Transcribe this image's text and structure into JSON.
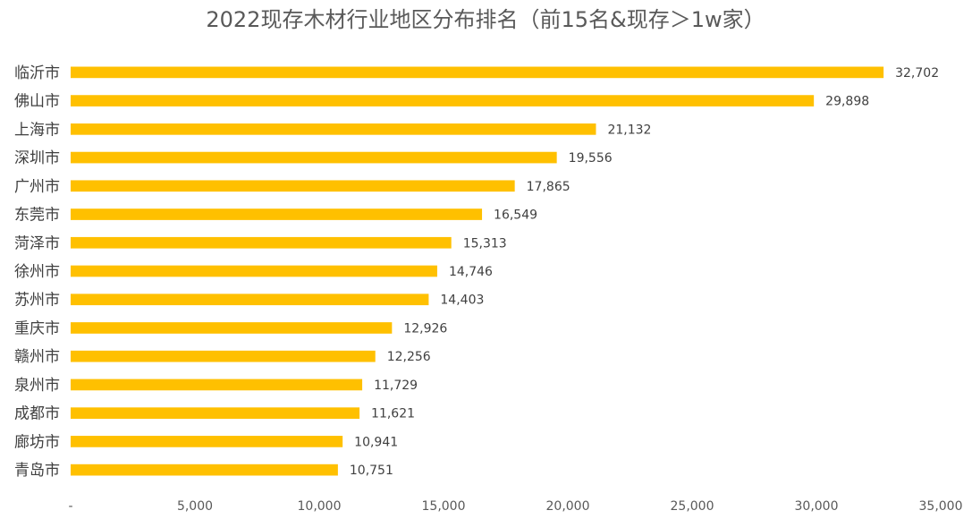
{
  "chart_data": {
    "type": "bar",
    "orientation": "horizontal",
    "title": "2022现存木材行业地区分布排名（前15名&现存＞1w家）",
    "xlabel": "",
    "ylabel": "",
    "categories": [
      "临沂市",
      "佛山市",
      "上海市",
      "深圳市",
      "广州市",
      "东莞市",
      "菏泽市",
      "徐州市",
      "苏州市",
      "重庆市",
      "赣州市",
      "泉州市",
      "成都市",
      "廊坊市",
      "青岛市"
    ],
    "values": [
      32702,
      29898,
      21132,
      19556,
      17865,
      16549,
      15313,
      14746,
      14403,
      12926,
      12256,
      11729,
      11621,
      10941,
      10751
    ],
    "data_labels": [
      "32,702",
      "29,898",
      "21,132",
      "19,556",
      "17,865",
      "16,549",
      "15,313",
      "14,746",
      "14,403",
      "12,926",
      "12,256",
      "11,729",
      "11,621",
      "10,941",
      "10,751"
    ],
    "xlim": [
      0,
      35000
    ],
    "x_ticks": [
      0,
      5000,
      10000,
      15000,
      20000,
      25000,
      30000,
      35000
    ],
    "x_tick_labels": [
      "-",
      "5,000",
      "10,000",
      "15,000",
      "20,000",
      "25,000",
      "30,000",
      "35,000"
    ],
    "grid": false,
    "legend": "none",
    "bar_color": "#FFC000"
  }
}
